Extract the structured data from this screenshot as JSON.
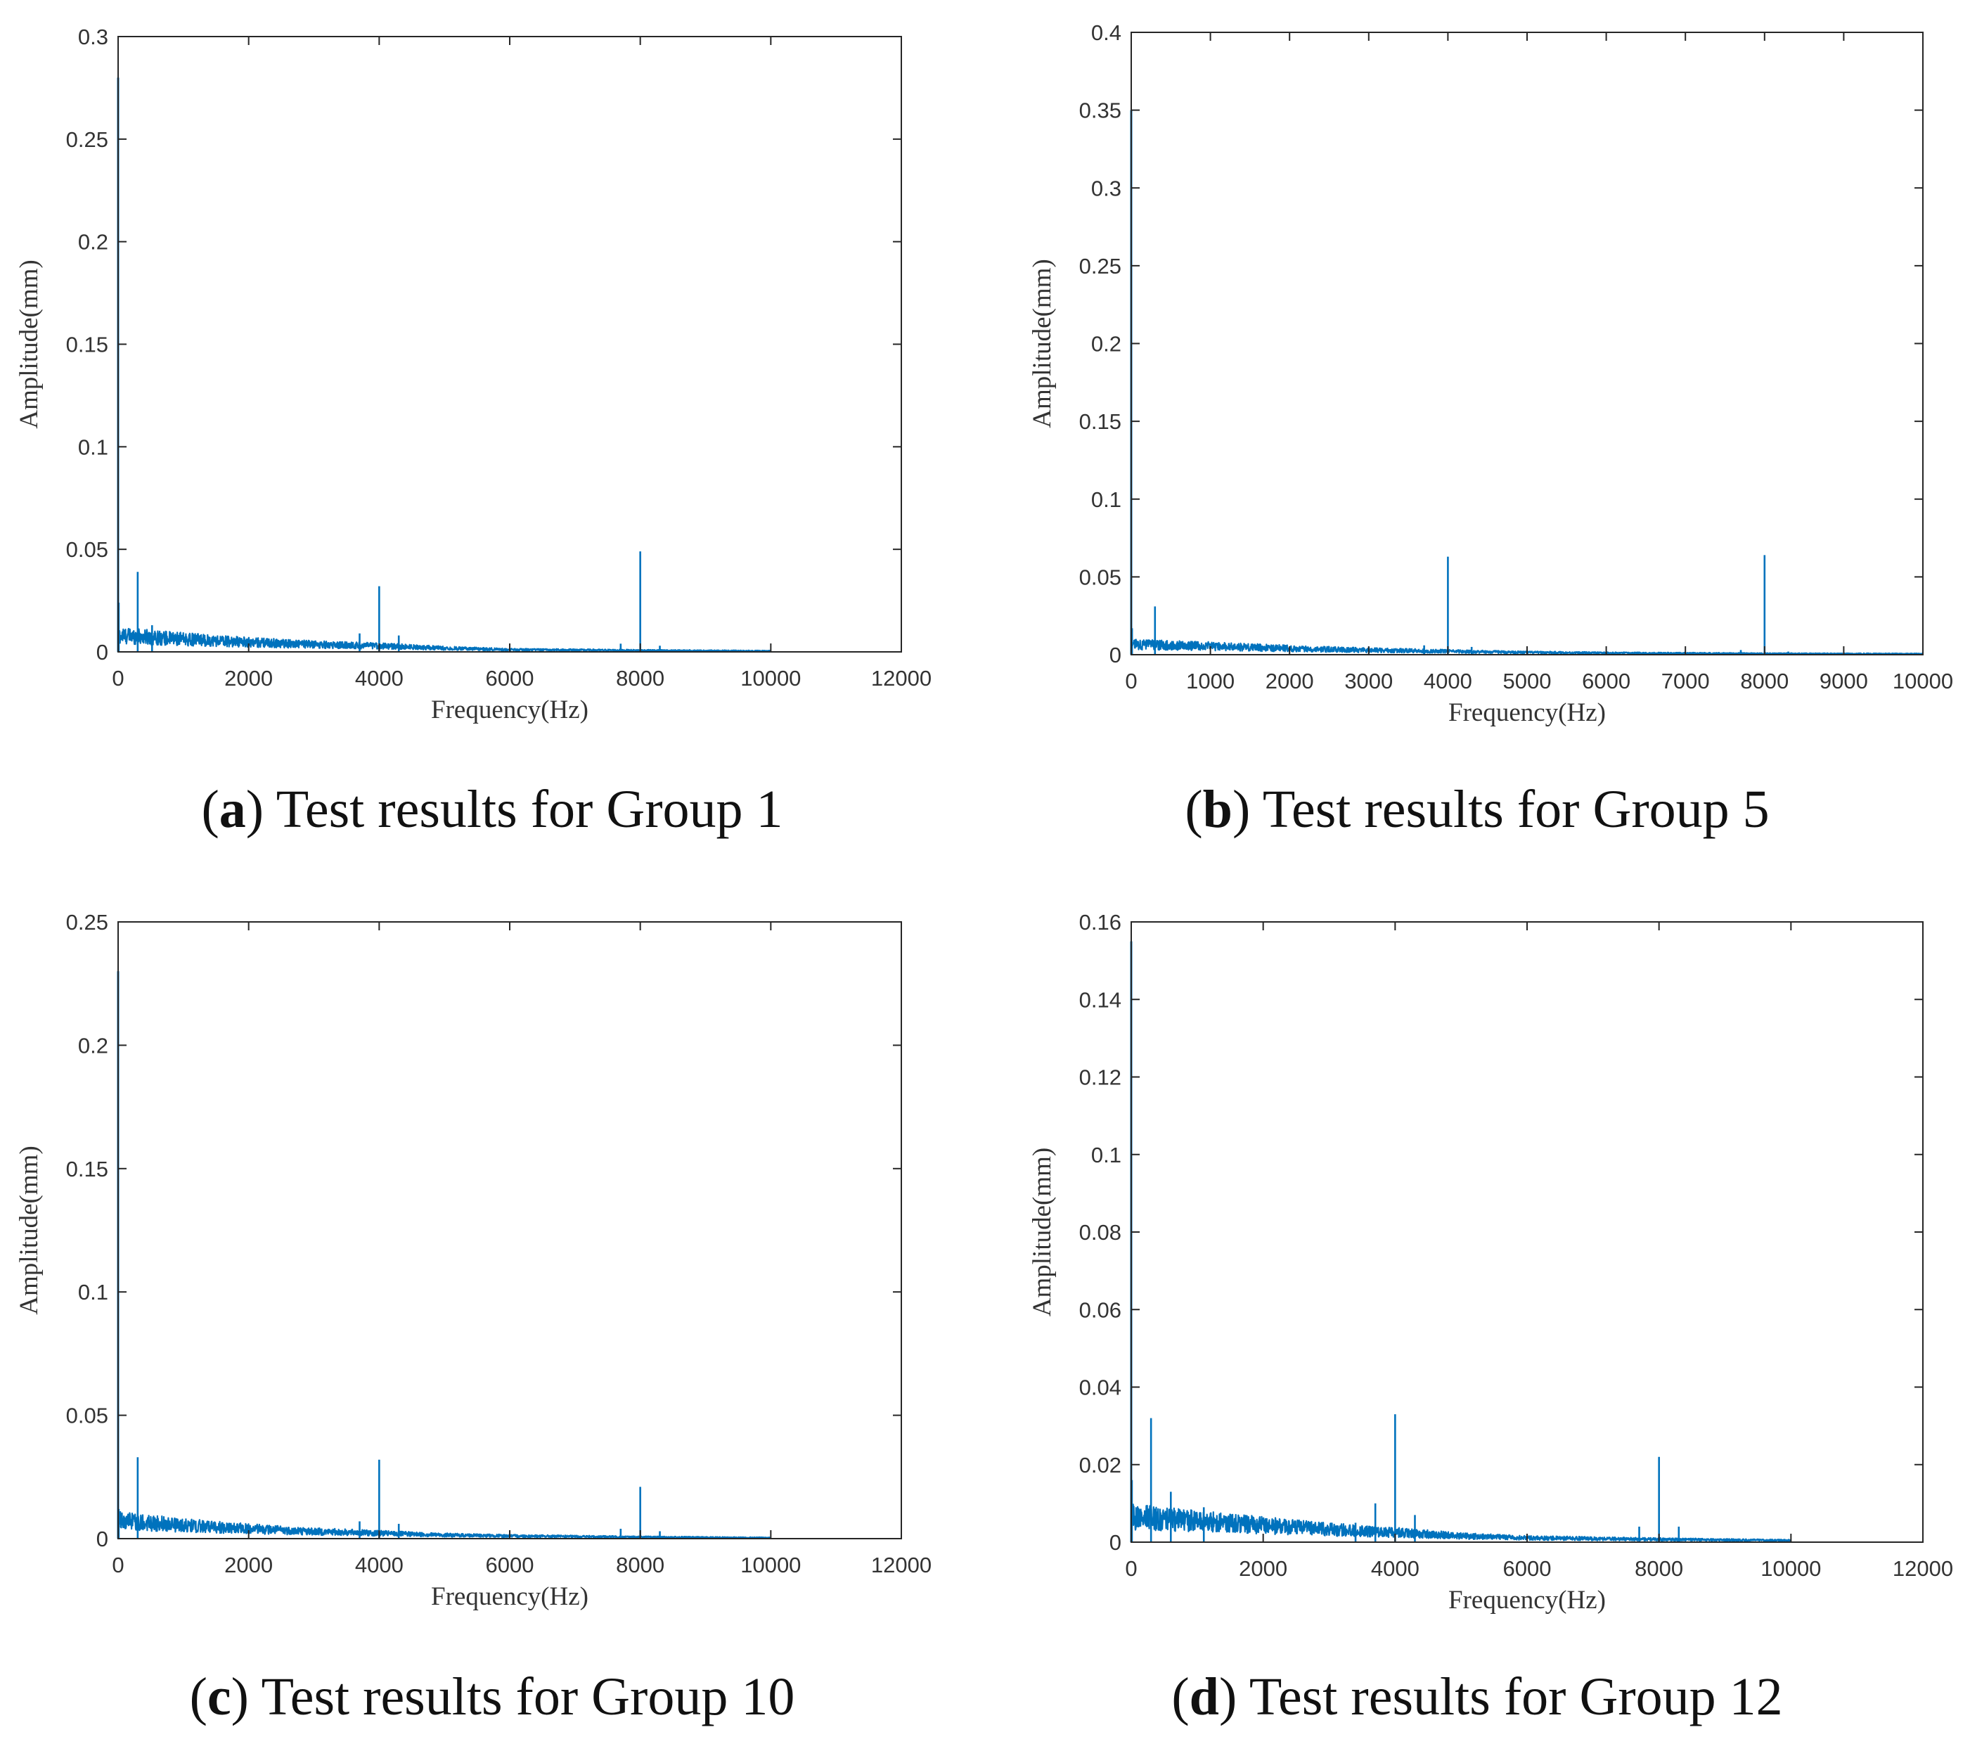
{
  "colors": {
    "series": "#0072BD",
    "axis": "#262626",
    "text": "#333333"
  },
  "chart_data": [
    {
      "type": "line",
      "panel": "a",
      "label": "a",
      "title": "Test results for Group 1",
      "xlabel": "Frequency(Hz)",
      "ylabel": "Amplitude(mm)",
      "xlim": [
        0,
        12000
      ],
      "ylim": [
        0,
        0.3
      ],
      "xticks": [
        0,
        2000,
        4000,
        6000,
        8000,
        10000,
        12000
      ],
      "xtick_labels": [
        "0",
        "2000",
        "4000",
        "6000",
        "8000",
        "10000",
        "12000"
      ],
      "yticks": [
        0,
        0.05,
        0.1,
        0.15,
        0.2,
        0.25,
        0.3
      ],
      "ytick_labels": [
        "0",
        "0.05",
        "0.1",
        "0.15",
        "0.2",
        "0.25",
        "0.3"
      ],
      "data_xmax": 10000,
      "noise_floor": [
        [
          0,
          0.011
        ],
        [
          1000,
          0.0085
        ],
        [
          2000,
          0.0065
        ],
        [
          3000,
          0.005
        ],
        [
          4000,
          0.004
        ],
        [
          5000,
          0.0025
        ],
        [
          6000,
          0.0015
        ],
        [
          8000,
          0.001
        ],
        [
          10000,
          0.0006
        ]
      ],
      "peaks": [
        {
          "x": 0,
          "y": 0.28
        },
        {
          "x": 10,
          "y": 0.024
        },
        {
          "x": 300,
          "y": 0.039
        },
        {
          "x": 520,
          "y": 0.013
        },
        {
          "x": 3700,
          "y": 0.009
        },
        {
          "x": 4000,
          "y": 0.032
        },
        {
          "x": 4300,
          "y": 0.008
        },
        {
          "x": 7700,
          "y": 0.004
        },
        {
          "x": 8000,
          "y": 0.049
        },
        {
          "x": 8300,
          "y": 0.003
        }
      ]
    },
    {
      "type": "line",
      "panel": "b",
      "label": "b",
      "title": "Test results for Group 5",
      "xlabel": "Frequency(Hz)",
      "ylabel": "Amplitude(mm)",
      "xlim": [
        0,
        10000
      ],
      "ylim": [
        0,
        0.4
      ],
      "xticks": [
        0,
        1000,
        2000,
        3000,
        4000,
        5000,
        6000,
        7000,
        8000,
        9000,
        10000
      ],
      "xtick_labels": [
        "0",
        "1000",
        "2000",
        "3000",
        "4000",
        "5000",
        "6000",
        "7000",
        "8000",
        "9000",
        "10000"
      ],
      "yticks": [
        0,
        0.05,
        0.1,
        0.15,
        0.2,
        0.25,
        0.3,
        0.35,
        0.4
      ],
      "ytick_labels": [
        "0",
        "0.05",
        "0.1",
        "0.15",
        "0.2",
        "0.25",
        "0.3",
        "0.35",
        "0.4"
      ],
      "data_xmax": 10000,
      "noise_floor": [
        [
          0,
          0.009
        ],
        [
          1000,
          0.0075
        ],
        [
          2000,
          0.0055
        ],
        [
          3000,
          0.004
        ],
        [
          4000,
          0.003
        ],
        [
          5000,
          0.002
        ],
        [
          6000,
          0.0015
        ],
        [
          8000,
          0.001
        ],
        [
          10000,
          0.0008
        ]
      ],
      "peaks": [
        {
          "x": 0,
          "y": 0.35
        },
        {
          "x": 10,
          "y": 0.017
        },
        {
          "x": 300,
          "y": 0.031
        },
        {
          "x": 3700,
          "y": 0.006
        },
        {
          "x": 4000,
          "y": 0.063
        },
        {
          "x": 4300,
          "y": 0.005
        },
        {
          "x": 7700,
          "y": 0.003
        },
        {
          "x": 8000,
          "y": 0.064
        },
        {
          "x": 8300,
          "y": 0.002
        }
      ]
    },
    {
      "type": "line",
      "panel": "c",
      "label": "c",
      "title": "Test results for Group 10",
      "xlabel": "Frequency(Hz)",
      "ylabel": "Amplitude(mm)",
      "xlim": [
        0,
        12000
      ],
      "ylim": [
        0,
        0.25
      ],
      "xticks": [
        0,
        2000,
        4000,
        6000,
        8000,
        10000,
        12000
      ],
      "xtick_labels": [
        "0",
        "2000",
        "4000",
        "6000",
        "8000",
        "10000",
        "12000"
      ],
      "yticks": [
        0,
        0.05,
        0.1,
        0.15,
        0.2,
        0.25
      ],
      "ytick_labels": [
        "0",
        "0.05",
        "0.1",
        "0.15",
        "0.2",
        "0.25"
      ],
      "data_xmax": 10000,
      "noise_floor": [
        [
          0,
          0.01
        ],
        [
          1000,
          0.0075
        ],
        [
          2000,
          0.0055
        ],
        [
          3000,
          0.004
        ],
        [
          4000,
          0.003
        ],
        [
          5000,
          0.002
        ],
        [
          6000,
          0.0015
        ],
        [
          8000,
          0.0009
        ],
        [
          10000,
          0.0005
        ]
      ],
      "peaks": [
        {
          "x": 0,
          "y": 0.23
        },
        {
          "x": 10,
          "y": 0.012
        },
        {
          "x": 300,
          "y": 0.033
        },
        {
          "x": 3700,
          "y": 0.007
        },
        {
          "x": 4000,
          "y": 0.032
        },
        {
          "x": 4300,
          "y": 0.006
        },
        {
          "x": 7700,
          "y": 0.004
        },
        {
          "x": 8000,
          "y": 0.021
        },
        {
          "x": 8300,
          "y": 0.003
        }
      ]
    },
    {
      "type": "line",
      "panel": "d",
      "label": "d",
      "title": "Test results for Group 12",
      "xlabel": "Frequency(Hz)",
      "ylabel": "Amplitude(mm)",
      "xlim": [
        0,
        12000
      ],
      "ylim": [
        0,
        0.16
      ],
      "xticks": [
        0,
        2000,
        4000,
        6000,
        8000,
        10000,
        12000
      ],
      "xtick_labels": [
        "0",
        "2000",
        "4000",
        "6000",
        "8000",
        "10000",
        "12000"
      ],
      "yticks": [
        0,
        0.02,
        0.04,
        0.06,
        0.08,
        0.1,
        0.12,
        0.14,
        0.16
      ],
      "ytick_labels": [
        "0",
        "0.02",
        "0.04",
        "0.06",
        "0.08",
        "0.1",
        "0.12",
        "0.14",
        "0.16"
      ],
      "data_xmax": 10000,
      "noise_floor": [
        [
          0,
          0.009
        ],
        [
          1000,
          0.0075
        ],
        [
          2000,
          0.006
        ],
        [
          3000,
          0.0045
        ],
        [
          4000,
          0.0035
        ],
        [
          5000,
          0.0022
        ],
        [
          6000,
          0.0015
        ],
        [
          8000,
          0.001
        ],
        [
          10000,
          0.0006
        ]
      ],
      "peaks": [
        {
          "x": 0,
          "y": 0.155
        },
        {
          "x": 10,
          "y": 0.016
        },
        {
          "x": 300,
          "y": 0.032
        },
        {
          "x": 600,
          "y": 0.013
        },
        {
          "x": 1100,
          "y": 0.009
        },
        {
          "x": 3400,
          "y": 0.005
        },
        {
          "x": 3700,
          "y": 0.01
        },
        {
          "x": 4000,
          "y": 0.033
        },
        {
          "x": 4300,
          "y": 0.007
        },
        {
          "x": 7700,
          "y": 0.004
        },
        {
          "x": 8000,
          "y": 0.022
        },
        {
          "x": 8300,
          "y": 0.004
        }
      ]
    }
  ]
}
